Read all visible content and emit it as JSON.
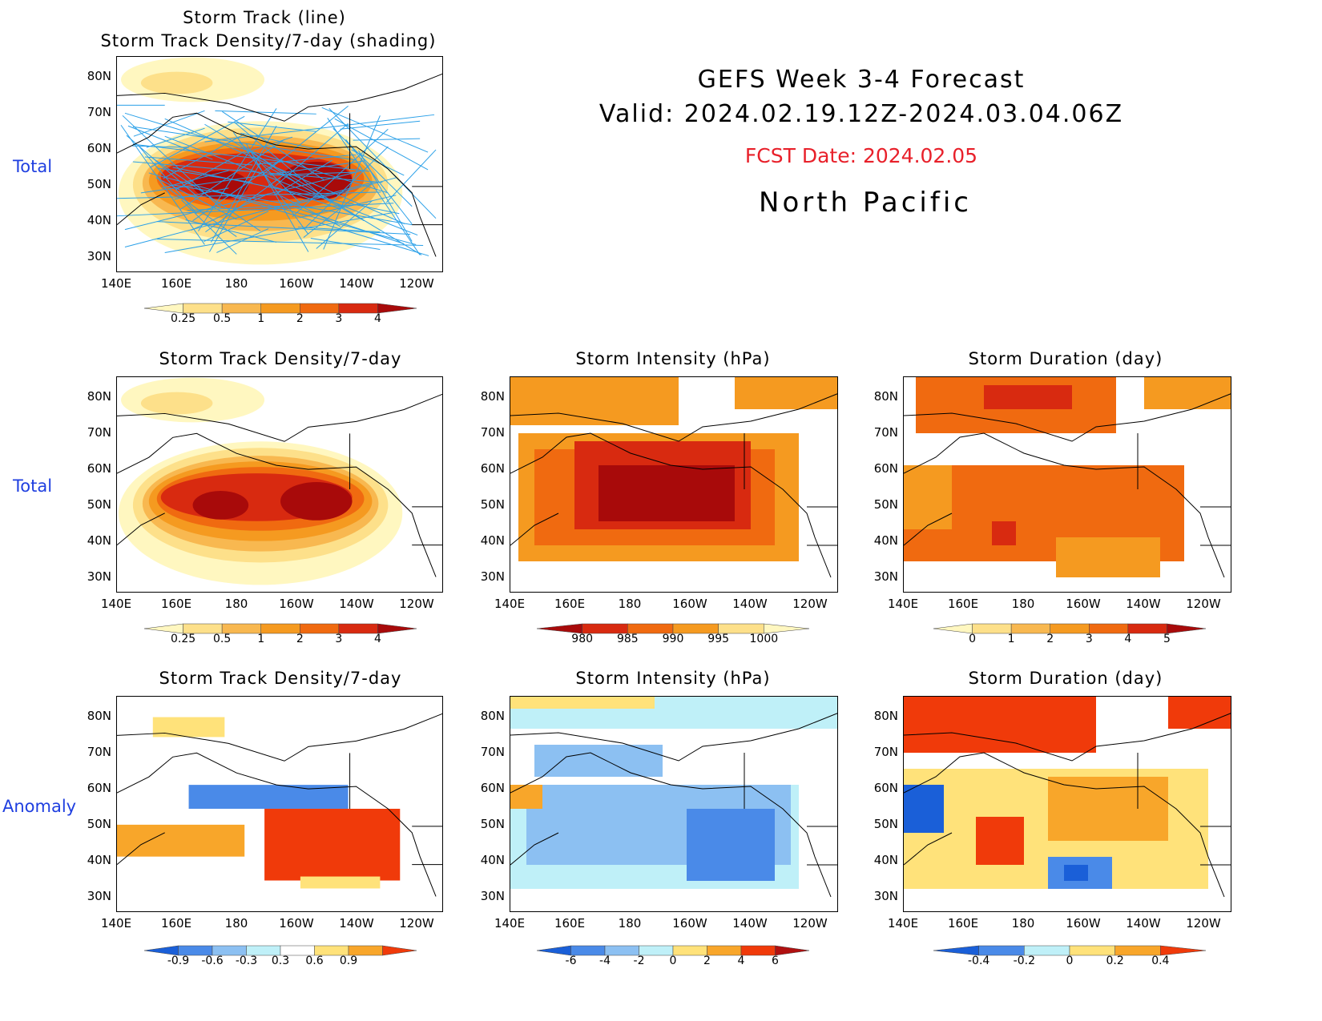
{
  "header": {
    "line1": "GEFS Week 3-4 Forecast",
    "line2": "Valid: 2024.02.19.12Z-2024.03.04.06Z",
    "fcst": "FCST Date: 2024.02.05",
    "region": "North Pacific",
    "fcst_color": "#e8202a"
  },
  "row_labels": [
    "Total",
    "Total",
    "Anomaly"
  ],
  "axes": {
    "x_ticks": [
      "140E",
      "160E",
      "180",
      "160W",
      "140W",
      "120W"
    ],
    "y_ticks": [
      "80N",
      "70N",
      "60N",
      "50N",
      "40N",
      "30N"
    ]
  },
  "panels": {
    "top": {
      "title1": "Storm Track (line)",
      "title2": "Storm Track Density/7-day (shading)"
    },
    "density_total": {
      "title": "Storm Track Density/7-day"
    },
    "intensity_total": {
      "title": "Storm Intensity (hPa)"
    },
    "duration_total": {
      "title": "Storm Duration (day)"
    },
    "density_anom": {
      "title": "Storm Track Density/7-day"
    },
    "intensity_anom": {
      "title": "Storm Intensity (hPa)"
    },
    "duration_anom": {
      "title": "Storm Duration (day)"
    }
  },
  "colorbars": {
    "density_total": {
      "labels": [
        "0.25",
        "0.5",
        "1",
        "2",
        "3",
        "4"
      ],
      "colors": [
        "#fff7c0",
        "#fde08a",
        "#f8b850",
        "#f59a20",
        "#f06a10",
        "#d82a10",
        "#a80a0a"
      ]
    },
    "intensity_total": {
      "labels": [
        "980",
        "985",
        "990",
        "995",
        "1000"
      ],
      "colors": [
        "#a80a0a",
        "#d82a10",
        "#f06a10",
        "#f59a20",
        "#fde08a",
        "#fff7c0"
      ]
    },
    "duration_total": {
      "labels": [
        "0",
        "1",
        "2",
        "3",
        "4",
        "5"
      ],
      "colors": [
        "#fff7c0",
        "#fde08a",
        "#f8b850",
        "#f59a20",
        "#f06a10",
        "#d82a10",
        "#a80a0a"
      ]
    },
    "density_anom": {
      "labels": [
        "-0.9",
        "-0.6",
        "-0.3",
        "0.3",
        "0.6",
        "0.9"
      ],
      "colors": [
        "#1a5fd8",
        "#4a8ae8",
        "#8cc0f2",
        "#bff0f8",
        "#ffffff",
        "#ffe27a",
        "#f8a62a",
        "#f03a0a"
      ]
    },
    "intensity_anom": {
      "labels": [
        "-6",
        "-4",
        "-2",
        "0",
        "2",
        "4",
        "6"
      ],
      "colors": [
        "#1a5fd8",
        "#4a8ae8",
        "#8cc0f2",
        "#bff0f8",
        "#ffe27a",
        "#f8a62a",
        "#f03a0a",
        "#b01010"
      ]
    },
    "duration_anom": {
      "labels": [
        "-0.4",
        "-0.2",
        "0",
        "0.2",
        "0.4"
      ],
      "colors": [
        "#1a5fd8",
        "#4a8ae8",
        "#bff0f8",
        "#ffe27a",
        "#f8a62a",
        "#f03a0a"
      ]
    }
  }
}
